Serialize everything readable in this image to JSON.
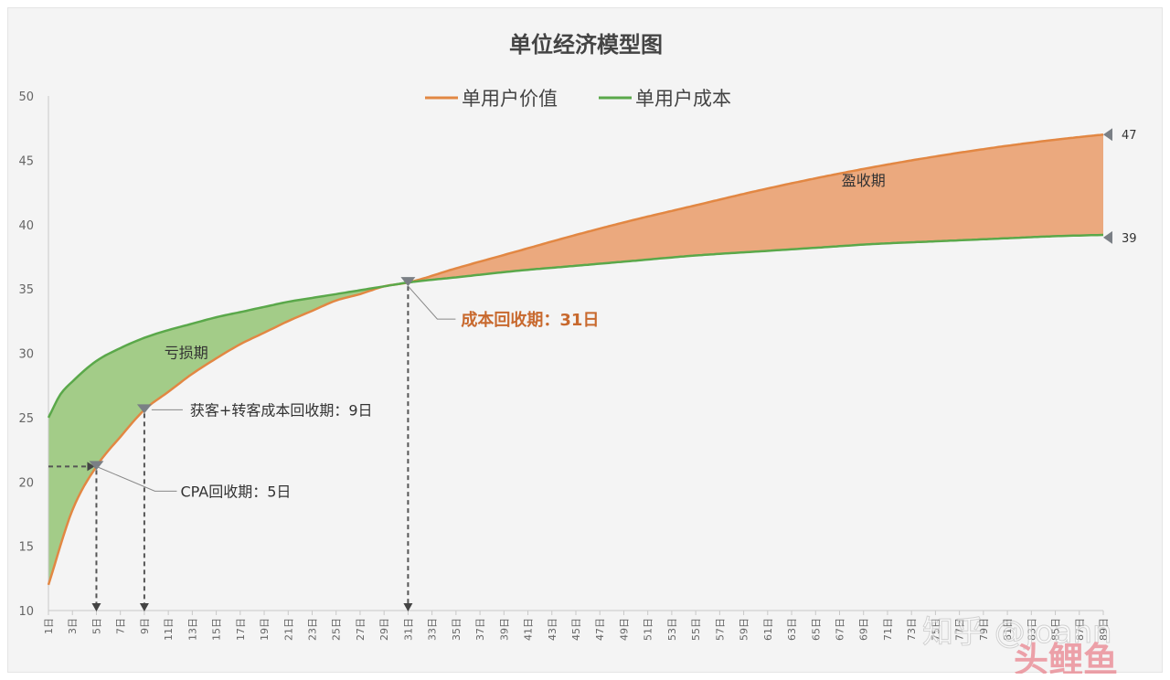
{
  "chart_data": {
    "type": "line",
    "title": "单位经济模型图",
    "legend": {
      "placement": "top-center"
    },
    "ylim": [
      10,
      50
    ],
    "y_ticks": [
      10,
      15,
      20,
      25,
      30,
      35,
      40,
      45,
      50
    ],
    "x_range": [
      1,
      89
    ],
    "x_tick_labels": [
      "1日",
      "3日",
      "5日",
      "7日",
      "9日",
      "11日",
      "13日",
      "15日",
      "17日",
      "19日",
      "21日",
      "23日",
      "25日",
      "27日",
      "29日",
      "31日",
      "33日",
      "35日",
      "37日",
      "39日",
      "41日",
      "43日",
      "45日",
      "47日",
      "49日",
      "51日",
      "53日",
      "55日",
      "57日",
      "59日",
      "61日",
      "63日",
      "65日",
      "67日",
      "69日",
      "71日",
      "73日",
      "75日",
      "77日",
      "79日",
      "81日",
      "83日",
      "85日",
      "87日",
      "89日"
    ],
    "grid": false,
    "series": [
      {
        "name": "单用户价值",
        "color": "#e28743",
        "points": [
          [
            1,
            12
          ],
          [
            3,
            17.8
          ],
          [
            5,
            21.2
          ],
          [
            7,
            23.5
          ],
          [
            9,
            25.6
          ],
          [
            11,
            27
          ],
          [
            13,
            28.4
          ],
          [
            15,
            29.6
          ],
          [
            17,
            30.7
          ],
          [
            19,
            31.6
          ],
          [
            21,
            32.5
          ],
          [
            23,
            33.3
          ],
          [
            25,
            34.1
          ],
          [
            27,
            34.6
          ],
          [
            29,
            35.2
          ],
          [
            31,
            35.5
          ],
          [
            35,
            36.6
          ],
          [
            40,
            37.9
          ],
          [
            45,
            39.2
          ],
          [
            50,
            40.4
          ],
          [
            55,
            41.5
          ],
          [
            60,
            42.6
          ],
          [
            65,
            43.6
          ],
          [
            70,
            44.5
          ],
          [
            75,
            45.3
          ],
          [
            80,
            46
          ],
          [
            85,
            46.6
          ],
          [
            89,
            47
          ]
        ]
      },
      {
        "name": "单用户成本",
        "color": "#5aa84a",
        "points": [
          [
            1,
            25
          ],
          [
            2,
            26.8
          ],
          [
            3,
            27.8
          ],
          [
            5,
            29.4
          ],
          [
            7,
            30.4
          ],
          [
            9,
            31.2
          ],
          [
            11,
            31.8
          ],
          [
            13,
            32.3
          ],
          [
            15,
            32.8
          ],
          [
            17,
            33.2
          ],
          [
            19,
            33.6
          ],
          [
            21,
            34
          ],
          [
            23,
            34.3
          ],
          [
            25,
            34.6
          ],
          [
            27,
            34.9
          ],
          [
            29,
            35.2
          ],
          [
            31,
            35.5
          ],
          [
            35,
            35.9
          ],
          [
            40,
            36.4
          ],
          [
            45,
            36.8
          ],
          [
            50,
            37.2
          ],
          [
            55,
            37.6
          ],
          [
            60,
            37.9
          ],
          [
            65,
            38.2
          ],
          [
            70,
            38.5
          ],
          [
            75,
            38.7
          ],
          [
            80,
            38.9
          ],
          [
            85,
            39.1
          ],
          [
            89,
            39.2
          ]
        ]
      }
    ],
    "fill_regions": [
      {
        "label": "亏损期",
        "color": "#a3cc88",
        "x_range": [
          1,
          31
        ]
      },
      {
        "label": "盈收期",
        "color": "#eba97e",
        "x_range": [
          31,
          89
        ]
      }
    ],
    "annotations": [
      {
        "text": "CPA回收期：5日",
        "x": 5,
        "y": 21.2
      },
      {
        "text": "获客+转客成本回收期：9日",
        "x": 9,
        "y": 25.6
      },
      {
        "text": "成本回收期：31日",
        "x": 31,
        "y": 35.5,
        "color": "#c8692e",
        "bold": true
      }
    ],
    "end_labels": [
      {
        "text": "47",
        "value": 47
      },
      {
        "text": "39",
        "value": 39
      }
    ]
  },
  "watermark": {
    "text": "知乎 @Joann",
    "logo_text": "头鲤鱼"
  }
}
